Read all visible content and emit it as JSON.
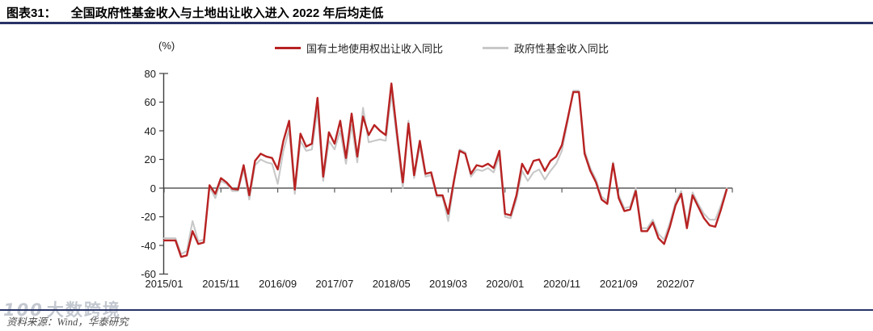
{
  "header": {
    "figure_label": "图表31：",
    "title": "全国政府性基金收入与土地出让收入进入 2022 年后均走低"
  },
  "chart_data": {
    "type": "line",
    "title": "全国政府性基金收入与土地出让收入进入 2022 年后均走低",
    "unit_label": "(%)",
    "grid": false,
    "legend_position": "top",
    "ylim": [
      -60,
      80
    ],
    "y_ticks": [
      80,
      60,
      40,
      20,
      0,
      -20,
      -40,
      -60
    ],
    "x_tick_labels": [
      "2015/01",
      "2015/11",
      "2016/09",
      "2017/07",
      "2018/05",
      "2019/03",
      "2020/01",
      "2020/11",
      "2021/09",
      "2022/07"
    ],
    "x": [
      "2015/01",
      "2015/02",
      "2015/03",
      "2015/04",
      "2015/05",
      "2015/06",
      "2015/07",
      "2015/08",
      "2015/09",
      "2015/10",
      "2015/11",
      "2015/12",
      "2016/01",
      "2016/02",
      "2016/03",
      "2016/04",
      "2016/05",
      "2016/06",
      "2016/07",
      "2016/08",
      "2016/09",
      "2016/10",
      "2016/11",
      "2016/12",
      "2017/01",
      "2017/02",
      "2017/03",
      "2017/04",
      "2017/05",
      "2017/06",
      "2017/07",
      "2017/08",
      "2017/09",
      "2017/10",
      "2017/11",
      "2017/12",
      "2018/01",
      "2018/02",
      "2018/03",
      "2018/04",
      "2018/05",
      "2018/06",
      "2018/07",
      "2018/08",
      "2018/09",
      "2018/10",
      "2018/11",
      "2018/12",
      "2019/01",
      "2019/02",
      "2019/03",
      "2019/04",
      "2019/05",
      "2019/06",
      "2019/07",
      "2019/08",
      "2019/09",
      "2019/10",
      "2019/11",
      "2019/12",
      "2020/01",
      "2020/02",
      "2020/03",
      "2020/04",
      "2020/05",
      "2020/06",
      "2020/07",
      "2020/08",
      "2020/09",
      "2020/10",
      "2020/11",
      "2020/12",
      "2021/01",
      "2021/02",
      "2021/03",
      "2021/04",
      "2021/05",
      "2021/06",
      "2021/07",
      "2021/08",
      "2021/09",
      "2021/10",
      "2021/11",
      "2021/12",
      "2022/01",
      "2022/02",
      "2022/03",
      "2022/04",
      "2022/05",
      "2022/06",
      "2022/07",
      "2022/08",
      "2022/09",
      "2022/10",
      "2022/11",
      "2022/12",
      "2023/01",
      "2023/02",
      "2023/03",
      "2023/04"
    ],
    "series": [
      {
        "name": "国有土地使用权出让收入同比",
        "color": "#b82222",
        "values": [
          -36.5,
          -36.5,
          -36.5,
          -48,
          -47,
          -30,
          -39,
          -38,
          2,
          -4,
          7,
          4,
          -0.5,
          -1,
          16,
          -5,
          19,
          24,
          22,
          21,
          13,
          33,
          47,
          -1,
          38,
          29,
          31,
          63,
          8,
          39,
          31,
          47,
          21,
          52,
          22,
          50,
          37,
          44,
          40,
          37,
          73,
          38,
          4,
          45,
          9,
          33,
          10,
          11,
          -5,
          -5,
          -18,
          5,
          26,
          24,
          10,
          16,
          15,
          17,
          14,
          26,
          -18,
          -19,
          -5,
          17,
          10,
          19,
          20,
          12,
          19,
          22,
          30,
          48,
          67,
          67,
          24,
          12,
          4,
          -8,
          -11,
          17,
          -7,
          -16,
          -15,
          -2,
          -30,
          -30,
          -24,
          -35,
          -39,
          -27,
          -12,
          -4,
          -28,
          -5,
          -13,
          -21,
          -26,
          -27,
          -15,
          -1
        ]
      },
      {
        "name": "政府性基金收入同比",
        "color": "#c8c8c8",
        "values": [
          -35,
          -35,
          -35,
          -46,
          -44,
          -23,
          -37,
          -36,
          1,
          -7,
          5,
          3,
          -2,
          -2,
          13,
          -8,
          16,
          20,
          18,
          17,
          3,
          26,
          41,
          -4,
          33,
          26,
          27,
          55,
          5,
          33,
          27,
          40,
          17,
          44,
          18,
          56,
          32,
          33,
          34,
          33,
          66,
          34,
          0,
          47,
          7,
          30,
          8,
          9,
          -6,
          -6,
          -23,
          3,
          27,
          25,
          8,
          13,
          12,
          14,
          11,
          22,
          -20,
          -21,
          -8,
          12,
          5,
          11,
          13,
          6,
          12,
          17,
          26,
          46,
          68,
          68,
          26,
          14,
          6,
          -6,
          -9,
          18,
          -5,
          -14,
          -13,
          0,
          -28,
          -28,
          -22,
          -32,
          -36,
          -24,
          -10,
          -2,
          -25,
          -3,
          -11,
          -18,
          -22,
          -22,
          -12,
          0
        ]
      }
    ]
  },
  "footer": {
    "source": "资料来源：Wind，华泰研究",
    "watermark_logo": "100",
    "watermark_text": "大数跨境"
  },
  "colors": {
    "accent_rule": "#283366",
    "zero_axis": "#5a5a5a",
    "y_axis": "#3f3f3f",
    "land_series": "#b82222",
    "fund_series": "#c8c8c8"
  }
}
